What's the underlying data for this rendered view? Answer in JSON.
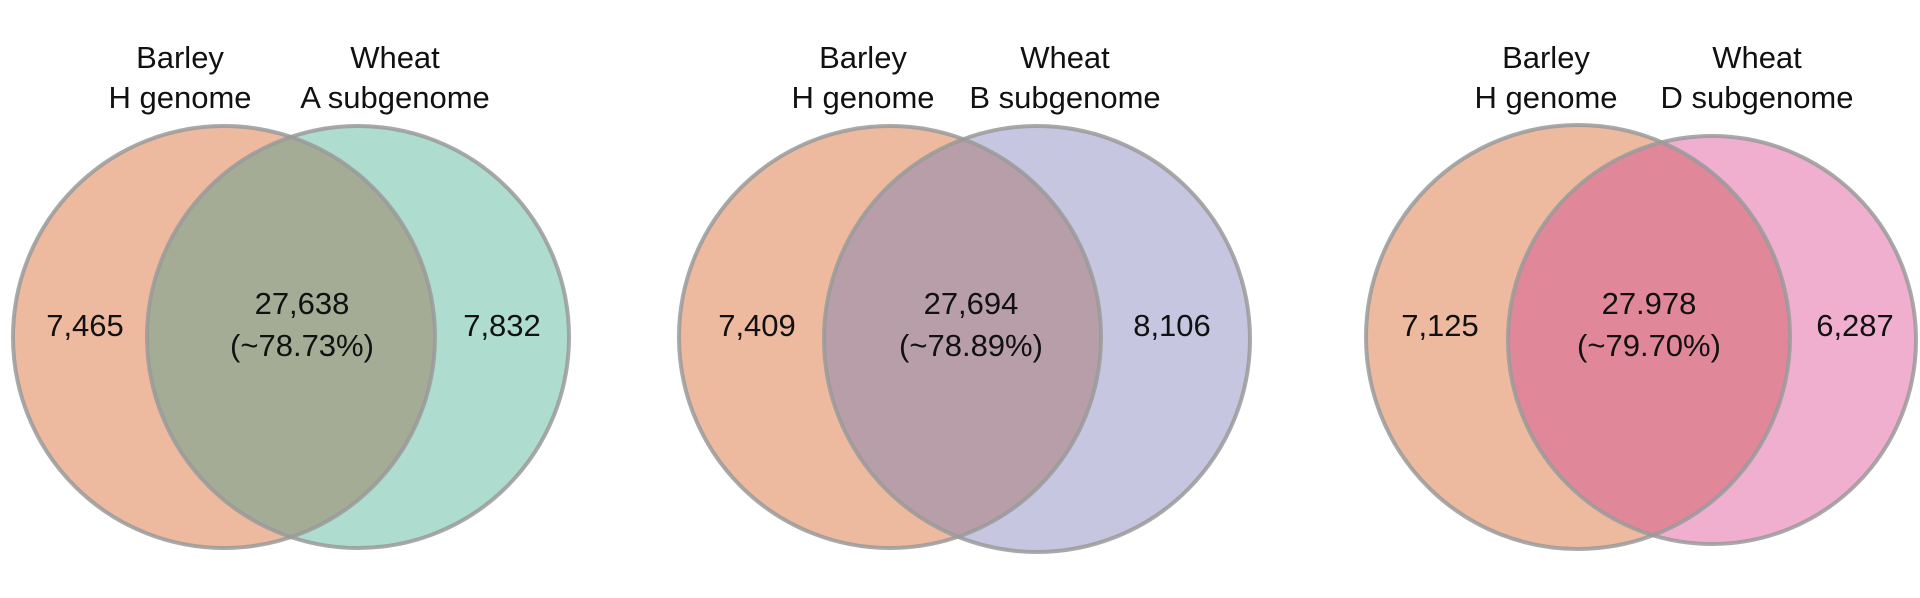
{
  "diagrams": [
    {
      "left": {
        "title_line1": "Barley",
        "title_line2": "H genome",
        "count": "7,465",
        "color": "#e8a685"
      },
      "right": {
        "title_line1": "Wheat",
        "title_line2": "A subgenome",
        "count": "7,832",
        "color": "#8fd0bc"
      },
      "overlap": {
        "count": "27,638",
        "percent": "(~78.73%)",
        "color": "#a4ac95"
      }
    },
    {
      "left": {
        "title_line1": "Barley",
        "title_line2": "H genome",
        "count": "7,409",
        "color": "#e8a685"
      },
      "right": {
        "title_line1": "Wheat",
        "title_line2": "B subgenome",
        "count": "8,106",
        "color": "#b0b0d6"
      },
      "overlap": {
        "count": "27,694",
        "percent": "(~78.89%)",
        "color": "#b89ea8"
      }
    },
    {
      "left": {
        "title_line1": "Barley",
        "title_line2": "H genome",
        "count": "7,125",
        "color": "#e8a685"
      },
      "right": {
        "title_line1": "Wheat",
        "title_line2": "D subgenome",
        "count": "6,287",
        "color": "#ea90bd"
      },
      "overlap": {
        "count": "27.978",
        "percent": "(~79.70%)",
        "color": "#e08799"
      }
    }
  ],
  "outline_color": "#9a9a9a"
}
